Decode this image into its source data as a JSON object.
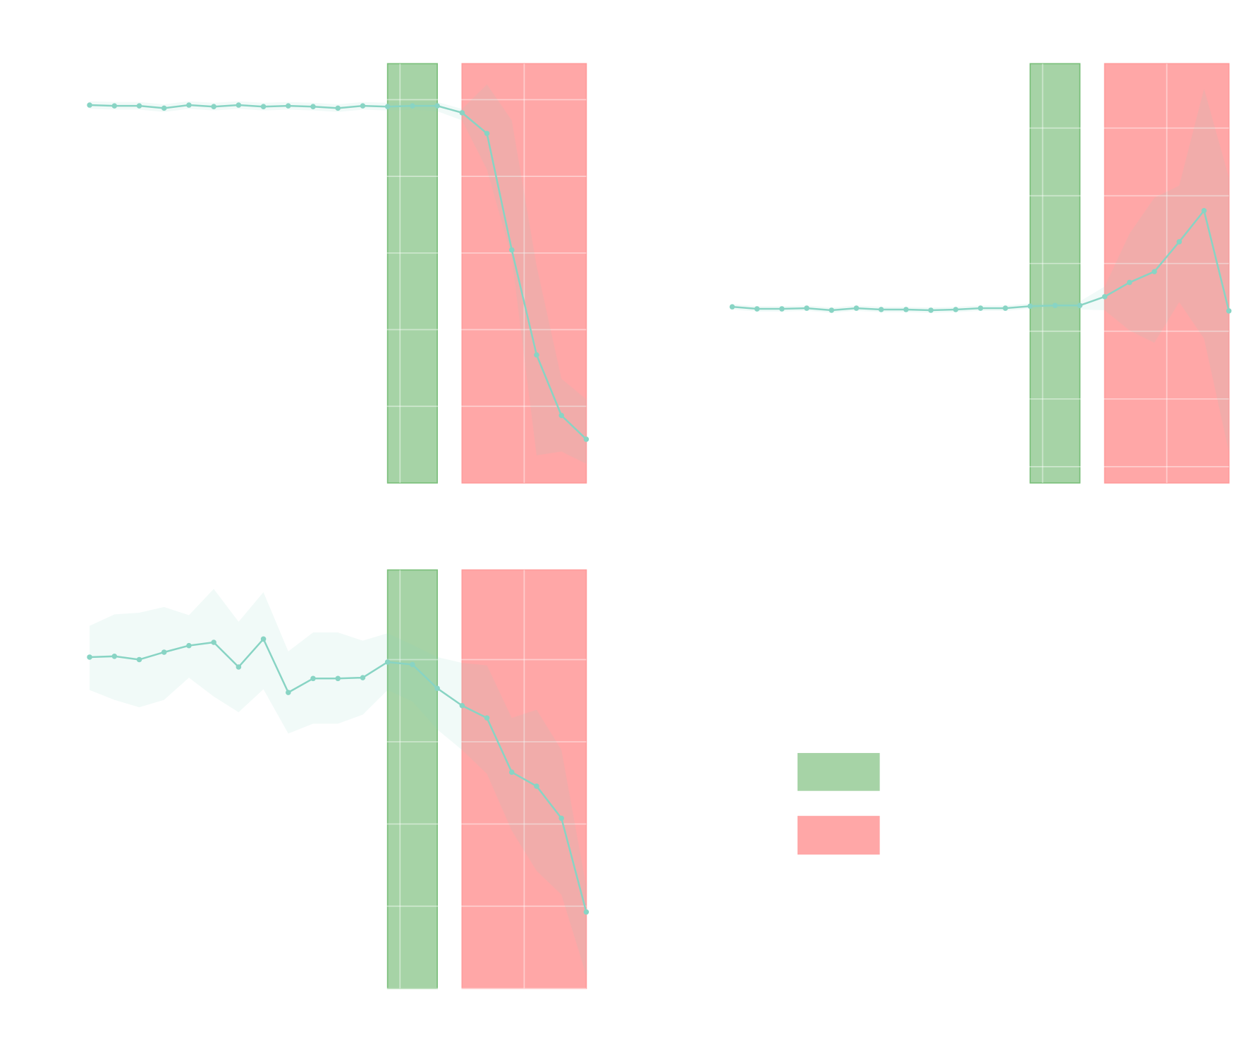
{
  "colors": {
    "line": "#88d4c4",
    "band": "#88d4c4",
    "green_region": "#a6d3a6",
    "green_edge": "#7cc07c",
    "red_region": "#ffa7a7",
    "red_edge": "#ff9c9c",
    "grid": "#ffffff",
    "background": "#ffffff"
  },
  "chart_data": [
    {
      "type": "line",
      "panel": "top-left",
      "x": [
        0,
        1,
        2,
        3,
        4,
        5,
        6,
        7,
        8,
        9,
        10,
        11,
        12,
        13,
        14,
        15,
        16,
        17,
        18,
        19,
        20
      ],
      "ylim": [
        0,
        5.47
      ],
      "xlim": [
        0,
        20
      ],
      "grid": true,
      "y_gridlines": [
        1,
        2,
        3,
        4,
        5
      ],
      "x_gridlines": [
        2.5,
        7.5,
        12.5,
        17.5
      ],
      "series": [
        {
          "values": [
            4.93,
            4.92,
            4.92,
            4.89,
            4.93,
            4.91,
            4.93,
            4.91,
            4.92,
            4.91,
            4.89,
            4.92,
            4.91,
            4.92,
            4.92,
            4.83,
            4.56,
            3.04,
            1.67,
            0.88,
            0.57
          ],
          "upper": [
            4.98,
            4.97,
            4.97,
            4.94,
            4.98,
            4.96,
            4.98,
            4.96,
            4.97,
            4.96,
            4.94,
            4.97,
            4.96,
            4.97,
            4.97,
            4.88,
            5.2,
            4.73,
            2.83,
            1.36,
            1.09
          ],
          "lower": [
            4.88,
            4.87,
            4.87,
            4.84,
            4.88,
            4.86,
            4.88,
            4.86,
            4.87,
            4.86,
            4.84,
            4.87,
            4.86,
            4.87,
            4.85,
            4.73,
            4.09,
            2.94,
            0.36,
            0.41,
            0.25
          ]
        }
      ],
      "regions": [
        {
          "kind": "green",
          "from": 12,
          "to": 14
        },
        {
          "kind": "red",
          "from": 15,
          "to": 20
        }
      ]
    },
    {
      "type": "line",
      "panel": "top-right",
      "x": [
        0,
        1,
        2,
        3,
        4,
        5,
        6,
        7,
        8,
        9,
        10,
        11,
        12,
        13,
        14,
        15,
        16,
        17,
        18,
        19,
        20
      ],
      "ylim": [
        0,
        6.19
      ],
      "xlim": [
        0,
        20
      ],
      "grid": true,
      "y_gridlines": [
        0.24,
        1.24,
        2.24,
        3.24,
        4.24,
        5.24
      ],
      "x_gridlines": [
        2.5,
        7.5,
        12.5,
        17.5
      ],
      "series": [
        {
          "values": [
            2.6,
            2.57,
            2.57,
            2.58,
            2.55,
            2.58,
            2.56,
            2.56,
            2.55,
            2.56,
            2.58,
            2.58,
            2.61,
            2.62,
            2.62,
            2.75,
            2.96,
            3.12,
            3.56,
            4.02,
            2.54
          ],
          "upper": [
            2.64,
            2.61,
            2.61,
            2.62,
            2.59,
            2.62,
            2.6,
            2.6,
            2.59,
            2.6,
            2.62,
            2.62,
            2.65,
            2.66,
            2.68,
            2.9,
            3.68,
            4.21,
            4.39,
            5.82,
            4.51
          ],
          "lower": [
            2.56,
            2.53,
            2.53,
            2.54,
            2.51,
            2.54,
            2.52,
            2.52,
            2.51,
            2.52,
            2.54,
            2.54,
            2.57,
            2.58,
            2.56,
            2.55,
            2.25,
            2.07,
            2.67,
            2.13,
            0.46
          ]
        }
      ],
      "regions": [
        {
          "kind": "green",
          "from": 12,
          "to": 14
        },
        {
          "kind": "red",
          "from": 15,
          "to": 20
        }
      ]
    },
    {
      "type": "line",
      "panel": "bottom-left",
      "x": [
        0,
        1,
        2,
        3,
        4,
        5,
        6,
        7,
        8,
        9,
        10,
        11,
        12,
        13,
        14,
        15,
        16,
        17,
        18,
        19,
        20
      ],
      "ylim": [
        0,
        5.09
      ],
      "xlim": [
        0,
        20
      ],
      "grid": true,
      "y_gridlines": [
        0,
        1,
        2,
        3,
        4
      ],
      "x_gridlines": [
        2.5,
        7.5,
        12.5,
        17.5
      ],
      "series": [
        {
          "values": [
            4.03,
            4.04,
            4.0,
            4.09,
            4.17,
            4.21,
            3.91,
            4.25,
            3.6,
            3.77,
            3.77,
            3.78,
            3.97,
            3.94,
            3.65,
            3.44,
            3.29,
            2.63,
            2.46,
            2.07,
            0.93
          ],
          "upper": [
            4.41,
            4.55,
            4.57,
            4.64,
            4.54,
            4.86,
            4.46,
            4.82,
            4.1,
            4.33,
            4.33,
            4.23,
            4.32,
            4.18,
            4.03,
            3.96,
            3.93,
            3.29,
            3.39,
            2.9,
            1.24
          ],
          "lower": [
            3.63,
            3.51,
            3.42,
            3.51,
            3.78,
            3.55,
            3.36,
            3.64,
            3.1,
            3.22,
            3.22,
            3.33,
            3.63,
            3.49,
            3.15,
            2.9,
            2.61,
            1.92,
            1.43,
            1.14,
            0.16
          ]
        }
      ],
      "regions": [
        {
          "kind": "green",
          "from": 12,
          "to": 14
        },
        {
          "kind": "red",
          "from": 15,
          "to": 20
        }
      ]
    }
  ],
  "legend": {
    "placement": "bottom-right",
    "entries": [
      {
        "kind": "green"
      },
      {
        "kind": "red"
      }
    ]
  }
}
